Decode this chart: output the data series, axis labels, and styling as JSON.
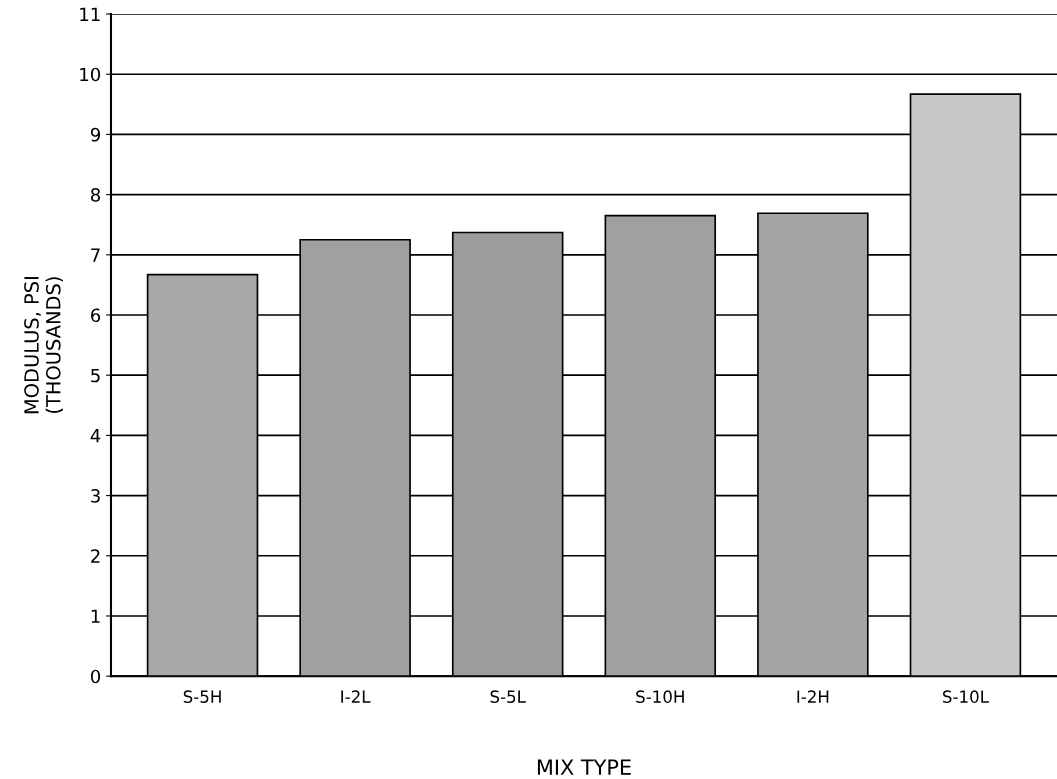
{
  "chart_data": {
    "type": "bar",
    "xlabel": "MIX TYPE",
    "ylabel": "MODULUS, PSI\n(THOUSANDS)",
    "categories": [
      "S-5H",
      "I-2L",
      "S-5L",
      "S-10H",
      "I-2H",
      "S-10L"
    ],
    "values": [
      6.67,
      7.25,
      7.37,
      7.65,
      7.69,
      9.67
    ],
    "colors": [
      "#a8a8a8",
      "#a0a0a0",
      "#9c9c9c",
      "#a0a0a0",
      "#a4a4a4",
      "#c8c8c8"
    ],
    "ylim": [
      0,
      11
    ],
    "yticks": [
      0,
      1,
      2,
      3,
      4,
      5,
      6,
      7,
      8,
      9,
      10,
      11
    ],
    "grid": "y"
  }
}
